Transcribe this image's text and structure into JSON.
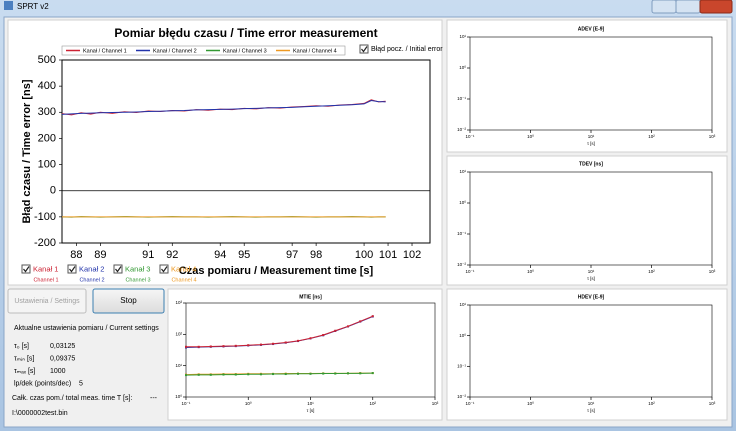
{
  "window": {
    "title": "SPRT v2"
  },
  "chart_data": [
    {
      "type": "line",
      "title": "Pomiar błędu czasu / Time error measurement",
      "xlabel": "Czas pomiaru / Measurement time [s]",
      "ylabel": "Błąd czasu / Time error [ns]",
      "xlim": [
        87.4,
        102.75
      ],
      "ylim": [
        -200,
        500
      ],
      "xticks": [
        88,
        89,
        91,
        92,
        94,
        95,
        97,
        98,
        100,
        101,
        102
      ],
      "yticks": [
        500,
        400,
        300,
        200,
        100,
        0,
        -100,
        -200
      ],
      "legend": "top",
      "x": [
        87.4,
        87.8,
        88.2,
        88.6,
        89.0,
        89.5,
        90.0,
        90.5,
        91.0,
        91.5,
        92.0,
        92.5,
        93.0,
        93.5,
        94.0,
        94.5,
        95.0,
        95.5,
        96.0,
        96.5,
        97.0,
        97.5,
        98.0,
        98.5,
        99.0,
        99.5,
        100.0,
        100.3,
        100.6,
        100.9
      ],
      "series": [
        {
          "name": "Kanał / Channel 1",
          "color": "#cc2233",
          "values": [
            295,
            290,
            298,
            293,
            300,
            296,
            302,
            299,
            305,
            303,
            307,
            305,
            310,
            308,
            312,
            310,
            315,
            313,
            318,
            316,
            320,
            322,
            325,
            323,
            328,
            330,
            334,
            348,
            340,
            342
          ]
        },
        {
          "name": "Kanał / Channel 2",
          "color": "#2233aa",
          "values": [
            292,
            294,
            296,
            297,
            298,
            299,
            300,
            301,
            303,
            304,
            306,
            307,
            309,
            310,
            311,
            312,
            314,
            315,
            317,
            318,
            319,
            321,
            323,
            325,
            327,
            329,
            332,
            345,
            341,
            340
          ]
        },
        {
          "name": "Kanał / Channel 3",
          "color": "#339933",
          "values": [
            -100,
            -101,
            -99,
            -100,
            -101,
            -100,
            -99,
            -100,
            -101,
            -100,
            -99,
            -100,
            -100,
            -101,
            -100,
            -99,
            -100,
            -101,
            -100,
            -100,
            -99,
            -100,
            -101,
            -100,
            -100,
            -99,
            -100,
            -101,
            -100,
            -100
          ]
        },
        {
          "name": "Kanał / Channel 4",
          "color": "#ee9922",
          "values": [
            -100,
            -100,
            -100,
            -100,
            -100,
            -100,
            -100,
            -100,
            -100,
            -100,
            -100,
            -100,
            -100,
            -100,
            -100,
            -100,
            -100,
            -100,
            -100,
            -100,
            -100,
            -100,
            -100,
            -100,
            -100,
            -100,
            -100,
            -100,
            -100,
            -100
          ]
        }
      ]
    },
    {
      "type": "line",
      "title": "ADEV [E-9]",
      "xlabel": "τ [s]",
      "xlog": true,
      "ylog": true,
      "xlim": [
        0.1,
        1000
      ],
      "ylim": [
        0.01,
        10
      ],
      "xticks": [
        {
          "value": 0.1,
          "label": "10⁻¹"
        },
        {
          "value": 1,
          "label": "10⁰"
        },
        {
          "value": 10,
          "label": "10¹"
        },
        {
          "value": 100,
          "label": "10²"
        },
        {
          "value": 1000,
          "label": "10³"
        }
      ],
      "yticks": [
        {
          "value": 10,
          "label": "10¹"
        },
        {
          "value": 1,
          "label": "10⁰"
        },
        {
          "value": 0.1,
          "label": "10⁻¹"
        },
        {
          "value": 0.01,
          "label": "10⁻²"
        }
      ],
      "series": []
    },
    {
      "type": "line",
      "title": "TDEV [ns]",
      "xlabel": "τ [s]",
      "xlog": true,
      "ylog": true,
      "xlim": [
        0.1,
        1000
      ],
      "ylim": [
        0.01,
        10
      ],
      "xticks": [
        {
          "value": 0.1,
          "label": "10⁻¹"
        },
        {
          "value": 1,
          "label": "10⁰"
        },
        {
          "value": 10,
          "label": "10¹"
        },
        {
          "value": 100,
          "label": "10²"
        },
        {
          "value": 1000,
          "label": "10³"
        }
      ],
      "yticks": [
        {
          "value": 10,
          "label": "10¹"
        },
        {
          "value": 1,
          "label": "10⁰"
        },
        {
          "value": 0.1,
          "label": "10⁻¹"
        },
        {
          "value": 0.01,
          "label": "10⁻²"
        }
      ],
      "series": []
    },
    {
      "type": "line",
      "title": "MTIE [ns]",
      "xlabel": "τ [s]",
      "xlog": true,
      "ylog": true,
      "xlim": [
        0.1,
        1000
      ],
      "ylim": [
        1,
        1000
      ],
      "xticks": [
        {
          "value": 0.1,
          "label": "10⁻¹"
        },
        {
          "value": 1,
          "label": "10⁰"
        },
        {
          "value": 10,
          "label": "10¹"
        },
        {
          "value": 100,
          "label": "10²"
        },
        {
          "value": 1000,
          "label": "10³"
        }
      ],
      "yticks": [
        {
          "value": 1000,
          "label": "10³"
        },
        {
          "value": 100,
          "label": "10²"
        },
        {
          "value": 10,
          "label": "10¹"
        },
        {
          "value": 1,
          "label": "10⁰"
        }
      ],
      "x": [
        0.1,
        0.16,
        0.25,
        0.4,
        0.63,
        1,
        1.6,
        2.5,
        4,
        6.3,
        10,
        16,
        25,
        40,
        63,
        100
      ],
      "series": [
        {
          "name": "Kanał / Channel 4",
          "color": "#ee9922",
          "values": [
            5.2,
            5.3,
            5.3,
            5.4,
            5.4,
            5.5,
            5.5,
            5.5,
            5.6,
            5.6,
            5.6,
            5.7,
            5.7,
            5.7,
            5.8,
            5.8
          ]
        },
        {
          "name": "Kanał / Channel 3",
          "color": "#339933",
          "values": [
            5.0,
            5.1,
            5.1,
            5.2,
            5.2,
            5.3,
            5.3,
            5.4,
            5.4,
            5.5,
            5.5,
            5.6,
            5.6,
            5.7,
            5.7,
            5.8
          ]
        },
        {
          "name": "Kanał / Channel 2",
          "color": "#2233aa",
          "values": [
            38,
            39,
            40,
            41,
            42,
            44,
            46,
            49,
            54,
            61,
            74,
            93,
            128,
            178,
            255,
            370
          ]
        },
        {
          "name": "Kanał / Channel 1",
          "color": "#cc2233",
          "values": [
            40,
            40,
            41,
            42,
            43,
            45,
            47,
            50,
            55,
            62,
            75,
            95,
            130,
            180,
            260,
            380
          ]
        }
      ]
    },
    {
      "type": "line",
      "title": "HDEV [E-9]",
      "xlabel": "τ [s]",
      "xlog": true,
      "ylog": true,
      "xlim": [
        0.1,
        1000
      ],
      "ylim": [
        0.01,
        10
      ],
      "xticks": [
        {
          "value": 0.1,
          "label": "10⁻¹"
        },
        {
          "value": 1,
          "label": "10⁰"
        },
        {
          "value": 10,
          "label": "10¹"
        },
        {
          "value": 100,
          "label": "10²"
        },
        {
          "value": 1000,
          "label": "10³"
        }
      ],
      "yticks": [
        {
          "value": 10,
          "label": "10¹"
        },
        {
          "value": 1,
          "label": "10⁰"
        },
        {
          "value": 0.1,
          "label": "10⁻¹"
        },
        {
          "value": 0.01,
          "label": "10⁻²"
        }
      ],
      "series": []
    }
  ],
  "controls": {
    "initial_error": "Błąd pocz. / Initial error",
    "channels": [
      {
        "label": "Kanał 1",
        "sublabel": "Channel 1"
      },
      {
        "label": "Kanał 2",
        "sublabel": "Channel 2"
      },
      {
        "label": "Kanał 3",
        "sublabel": "Channel 3"
      },
      {
        "label": "Kanał 4",
        "sublabel": "Channel 4"
      }
    ],
    "settings_button": "Ustawienia / Settings",
    "stop_button": "Stop"
  },
  "settings": {
    "heading": "Aktualne ustawienia pomiaru / Current settings",
    "rows": [
      {
        "label": "τ₀ [s]",
        "value": "0,03125"
      },
      {
        "label": "τₘᵢₙ [s]",
        "value": "0,09375"
      },
      {
        "label": "τₘₐₓ [s]",
        "value": "1000"
      },
      {
        "label": "lp/dek (points/dec)",
        "value": "5"
      }
    ],
    "total_time_label": "Całk. czas pom./ total meas. time T [s]:",
    "total_time_value": "---",
    "file": "I:\\0000002test.bin"
  }
}
